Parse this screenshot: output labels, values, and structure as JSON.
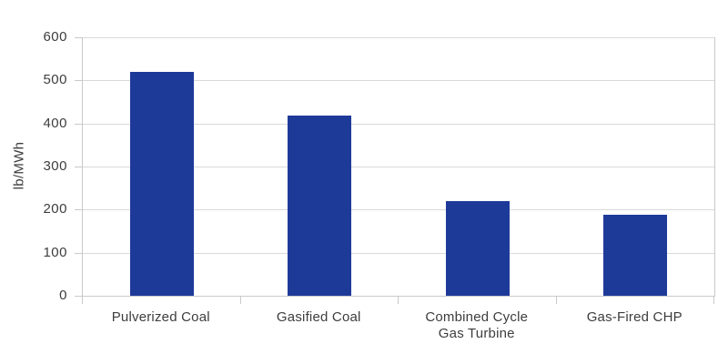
{
  "chart_data": {
    "type": "bar",
    "title": "",
    "xlabel": "",
    "ylabel": "lb/MWh",
    "categories": [
      "Pulverized Coal",
      "Gasified Coal",
      "Combined Cycle\nGas Turbine",
      "Gas-Fired CHP"
    ],
    "values": [
      520,
      418,
      220,
      188
    ],
    "ylim": [
      0,
      600
    ],
    "yticks": [
      0,
      100,
      200,
      300,
      400,
      500,
      600
    ],
    "grid": true,
    "legend": "none",
    "colors": {
      "bar": "#1E3A99",
      "gridline": "#D9D9D9",
      "axis": "#C9C9C9",
      "text": "#3D3D3D"
    }
  }
}
